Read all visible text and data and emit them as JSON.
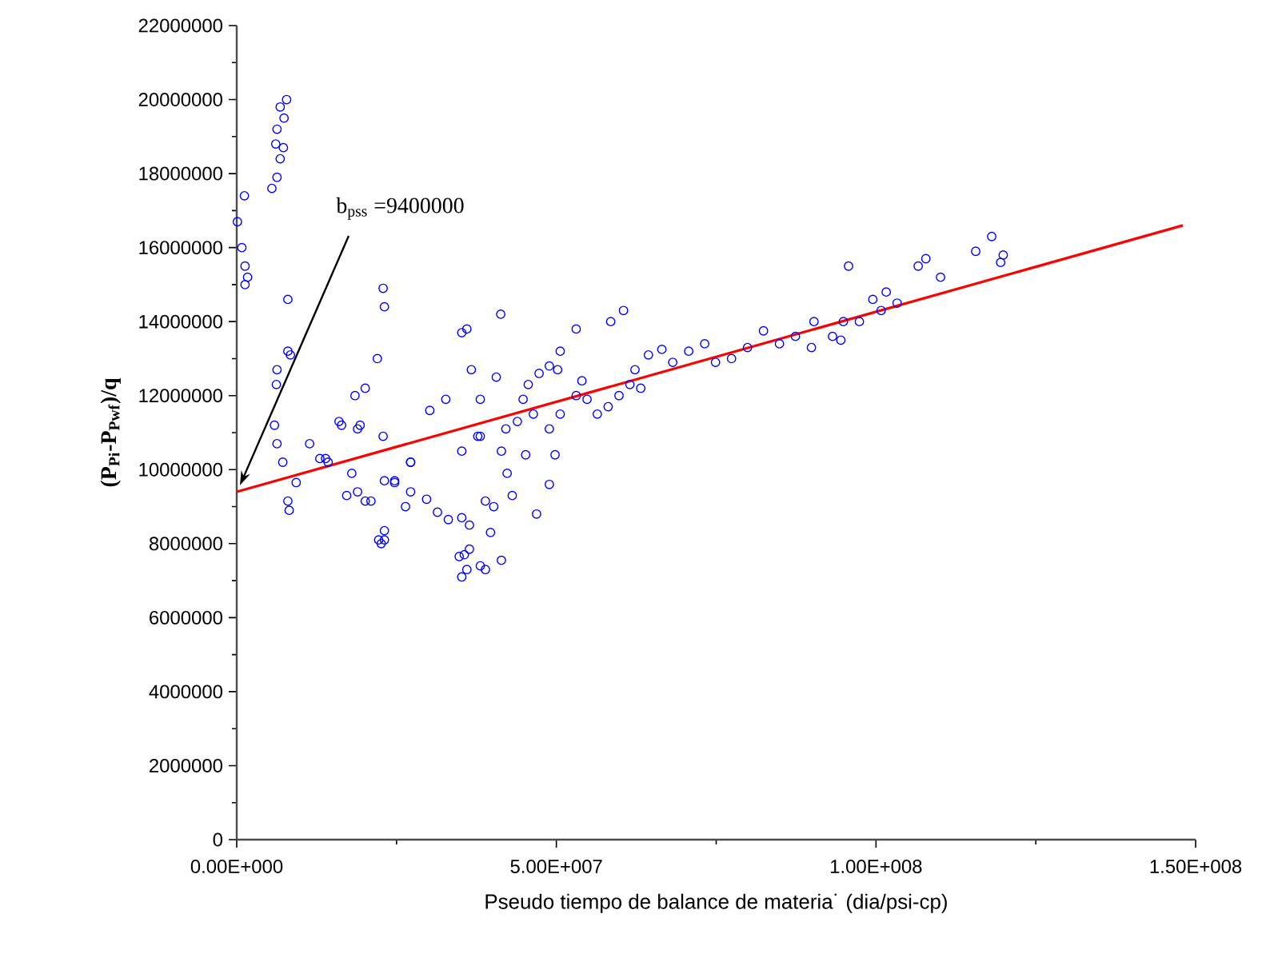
{
  "chart_data": {
    "type": "scatter",
    "xlabel": "Pseudo tiempo de balance de materia˙ (dia/psi-cp)",
    "ylabel": "(P$_{Pi}$-P$_{Pwf}$)/q",
    "annotations": [
      "b$_{pss}$ =9400000"
    ],
    "xlim": [
      0,
      150000000
    ],
    "ylim": [
      0,
      22000000
    ],
    "xticks": [
      {
        "value": 0,
        "label": "0.00E+000"
      },
      {
        "value": 25000000,
        "label": null
      },
      {
        "value": 50000000,
        "label": "5.00E+007"
      },
      {
        "value": 75000000,
        "label": null
      },
      {
        "value": 100000000,
        "label": "1.00E+008"
      },
      {
        "value": 125000000,
        "label": null
      },
      {
        "value": 150000000,
        "label": "1.50E+008"
      }
    ],
    "yticks": [
      0,
      {
        "value": 1000000,
        "label": null
      },
      2000000,
      {
        "value": 3000000,
        "label": null
      },
      4000000,
      {
        "value": 5000000,
        "label": null
      },
      6000000,
      {
        "value": 7000000,
        "label": null
      },
      8000000,
      {
        "value": 9000000,
        "label": null
      },
      10000000,
      {
        "value": 11000000,
        "label": null
      },
      12000000,
      {
        "value": 13000000,
        "label": null
      },
      14000000,
      {
        "value": 15000000,
        "label": null
      },
      16000000,
      {
        "value": 17000000,
        "label": null
      },
      18000000,
      {
        "value": 19000000,
        "label": null
      },
      20000000,
      {
        "value": 21000000,
        "label": null
      },
      22000000
    ],
    "grid": false,
    "series": [
      {
        "color": "#0000ff",
        "marker": "circle",
        "x": [
          1200000,
          100000,
          800000,
          1300000,
          1700000,
          1300000,
          7800000,
          6800000,
          7400000,
          6300000,
          6100000,
          7300000,
          6800000,
          6300000,
          5500000,
          8000000,
          8000000,
          6300000,
          6200000,
          5900000,
          6300000,
          7200000,
          8000000,
          8200000,
          9300000,
          11400000,
          13000000,
          14300000,
          16000000,
          18500000,
          20100000,
          22000000,
          22900000,
          23100000,
          19300000,
          22900000,
          18000000,
          18900000,
          20100000,
          23100000,
          24700000,
          27200000,
          23100000,
          22600000,
          27200000,
          26400000,
          29700000,
          31400000,
          33100000,
          35200000,
          36400000,
          34800000,
          36400000,
          38100000,
          36000000,
          30200000,
          32700000,
          35200000,
          36000000,
          41300000,
          36700000,
          40600000,
          38100000,
          35200000,
          38100000,
          37700000,
          42100000,
          48900000,
          48900000,
          46900000,
          44800000,
          45600000,
          47300000,
          48900000,
          50200000,
          50600000,
          41400000,
          42300000,
          43100000,
          45200000,
          46400000,
          43900000,
          40200000,
          38900000,
          49800000,
          50600000,
          53100000,
          54800000,
          56400000,
          58100000,
          59800000,
          61500000,
          53100000,
          58500000,
          60500000,
          54000000,
          35600000,
          35200000,
          39700000,
          41400000,
          38900000,
          23100000,
          22200000,
          17200000,
          21000000,
          24700000,
          27200000,
          16400000,
          18900000,
          8400000,
          13900000,
          63200000,
          62300000,
          64400000,
          66500000,
          68200000,
          70700000,
          73200000,
          74900000,
          77400000,
          79900000,
          82400000,
          84900000,
          87400000,
          89900000,
          90300000,
          93200000,
          94900000,
          97400000,
          99500000,
          101600000,
          103300000,
          100800000,
          95700000,
          94500000,
          106600000,
          107800000,
          110100000,
          115600000,
          118100000,
          119900000,
          119500000
        ],
        "values": [
          17400000,
          16700000,
          16000000,
          15500000,
          15200000,
          15000000,
          20000000,
          19800000,
          19500000,
          19200000,
          18800000,
          18700000,
          18400000,
          17900000,
          17600000,
          14600000,
          13200000,
          12700000,
          12300000,
          11200000,
          10700000,
          10200000,
          9150000,
          8900000,
          9650000,
          10700000,
          10300000,
          10200000,
          11300000,
          12000000,
          12200000,
          13000000,
          14900000,
          14400000,
          11200000,
          10900000,
          9900000,
          9400000,
          9150000,
          9700000,
          9650000,
          10200000,
          8100000,
          8000000,
          9400000,
          9000000,
          9200000,
          8850000,
          8650000,
          8700000,
          8500000,
          7650000,
          7850000,
          7400000,
          7300000,
          11600000,
          11900000,
          13700000,
          13800000,
          14200000,
          12700000,
          12500000,
          11900000,
          10500000,
          10900000,
          10900000,
          11100000,
          11100000,
          9600000,
          8800000,
          11900000,
          12300000,
          12600000,
          12800000,
          12700000,
          13200000,
          10500000,
          9900000,
          9300000,
          10400000,
          11500000,
          11300000,
          9000000,
          9150000,
          10400000,
          11500000,
          12000000,
          11900000,
          11500000,
          11700000,
          12000000,
          12300000,
          13800000,
          14000000,
          14300000,
          12400000,
          7700000,
          7100000,
          8300000,
          7550000,
          7300000,
          8350000,
          8100000,
          9300000,
          9150000,
          9700000,
          10200000,
          11200000,
          11100000,
          13100000,
          10300000,
          12200000,
          12700000,
          13100000,
          13250000,
          12900000,
          13200000,
          13400000,
          12900000,
          13000000,
          13300000,
          13750000,
          13400000,
          13600000,
          13300000,
          14000000,
          13600000,
          14000000,
          14000000,
          14600000,
          14800000,
          14500000,
          14300000,
          15500000,
          13500000,
          15500000,
          15700000,
          15200000,
          15900000,
          16300000,
          15800000,
          15600000
        ]
      },
      {
        "type": "line",
        "color": "#ff0000",
        "marker": "none",
        "line_style": "solid",
        "x": [
          0,
          148000000
        ],
        "values": [
          9400000,
          16600000
        ]
      }
    ]
  }
}
